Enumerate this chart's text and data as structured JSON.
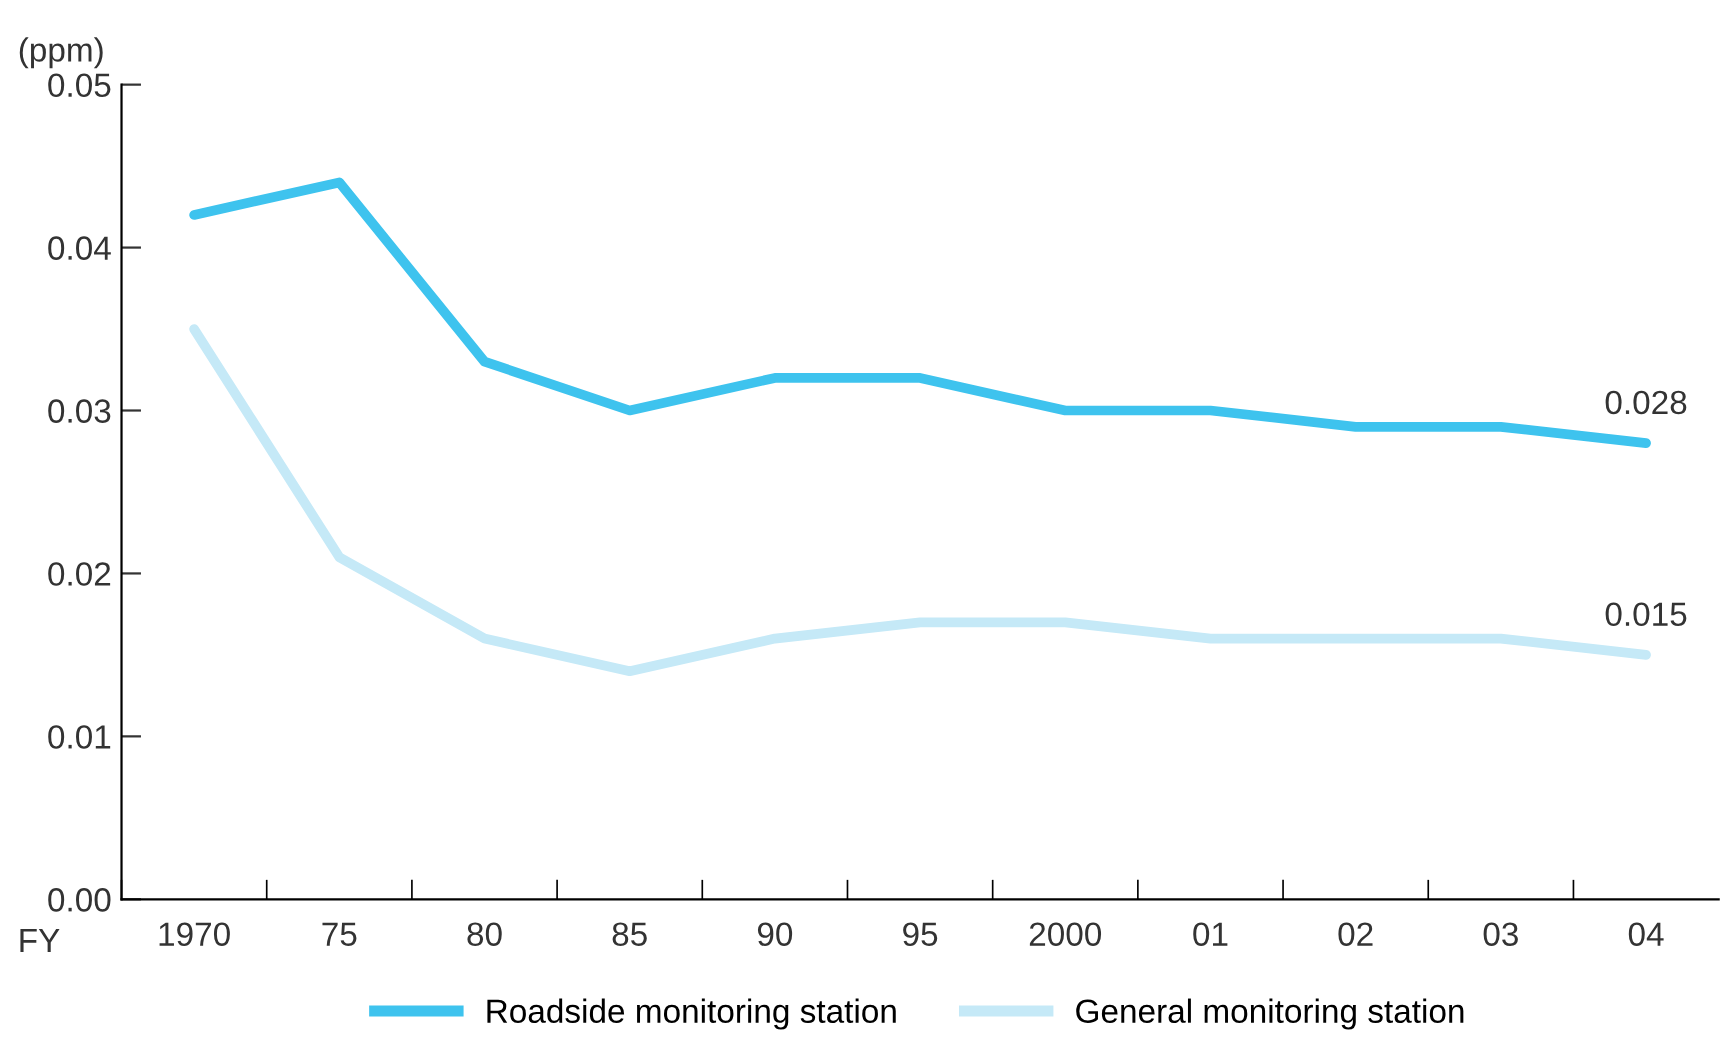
{
  "chart_data": {
    "type": "line",
    "ylabel": "(ppm)",
    "xlabel": "FY",
    "categories": [
      "1970",
      "75",
      "80",
      "85",
      "90",
      "95",
      "2000",
      "01",
      "02",
      "03",
      "04"
    ],
    "series": [
      {
        "name": "Roadside monitoring station",
        "color": "#3ec3ee",
        "values": [
          0.042,
          0.044,
          0.033,
          0.03,
          0.032,
          0.032,
          0.03,
          0.03,
          0.029,
          0.029,
          0.028
        ],
        "value_labels": [
          null,
          null,
          null,
          null,
          null,
          null,
          null,
          null,
          null,
          null,
          "0.028"
        ]
      },
      {
        "name": "General monitoring station",
        "color": "#c5e9f7",
        "values": [
          0.035,
          0.021,
          0.016,
          0.014,
          0.016,
          0.017,
          0.017,
          0.016,
          0.016,
          0.016,
          0.015
        ],
        "value_labels": [
          null,
          null,
          null,
          null,
          null,
          null,
          null,
          null,
          null,
          null,
          "0.015"
        ]
      }
    ],
    "ylim": [
      0,
      0.05
    ],
    "yticks": [
      {
        "value": 0,
        "label": "0.00"
      },
      {
        "value": 0.01,
        "label": "0.01"
      },
      {
        "value": 0.02,
        "label": "0.02"
      },
      {
        "value": 0.03,
        "label": "0.03"
      },
      {
        "value": 0.04,
        "label": "0.04"
      },
      {
        "value": 0.05,
        "label": "0.05"
      }
    ],
    "grid": false,
    "legend": "bottom",
    "marker": "none",
    "line_style": "solid"
  }
}
